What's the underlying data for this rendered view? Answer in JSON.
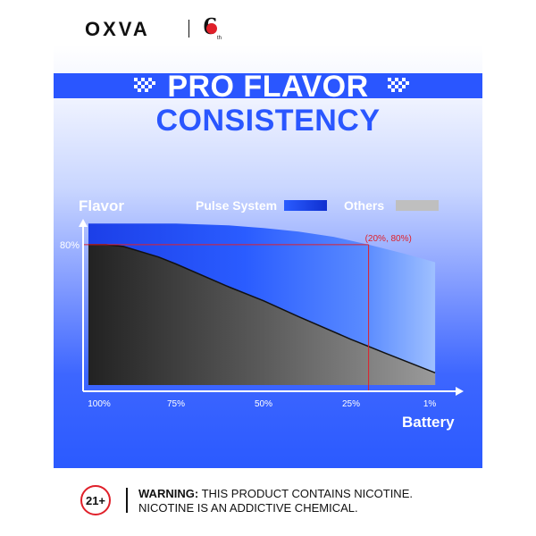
{
  "brand": {
    "logo_text": "OXVA",
    "edition_badge": "6th"
  },
  "title": {
    "line1": "PRO FLAVOR",
    "line2": "CONSISTENCY"
  },
  "warning": {
    "badge": "21+",
    "label": "WARNING:",
    "line1": "THIS PRODUCT CONTAINS NICOTINE.",
    "line2": "NICOTINE IS AN ADDICTIVE CHEMICAL."
  },
  "colors": {
    "accent_blue": "#2a56ff",
    "pulse_series": "#1f4fff",
    "others_series": "#3a3a3a",
    "marker": "#e0202a"
  },
  "chart_data": {
    "type": "area",
    "xlabel": "Battery",
    "ylabel": "Flavor",
    "x_ticks": [
      "100%",
      "75%",
      "50%",
      "25%",
      "1%"
    ],
    "x_reversed": true,
    "xlim": [
      100,
      0
    ],
    "ylim": [
      0,
      110
    ],
    "y_ticks": [
      {
        "value": 80,
        "label": "80%"
      }
    ],
    "legend": {
      "placement": "top"
    },
    "series": [
      {
        "name": "Pulse System",
        "x": [
          100,
          90,
          75,
          60,
          50,
          40,
          30,
          20,
          10,
          1
        ],
        "values": [
          92,
          92,
          92,
          91,
          89.5,
          87.5,
          84.5,
          80,
          75,
          70
        ]
      },
      {
        "name": "Others",
        "x": [
          100,
          95,
          90,
          80,
          75,
          60,
          50,
          40,
          25,
          15,
          1
        ],
        "values": [
          80,
          80,
          79,
          73,
          69,
          56,
          48,
          39,
          26,
          18,
          7
        ]
      }
    ],
    "annotations": [
      {
        "text": "(20%, 80%)",
        "x": 20,
        "y": 80
      }
    ]
  }
}
